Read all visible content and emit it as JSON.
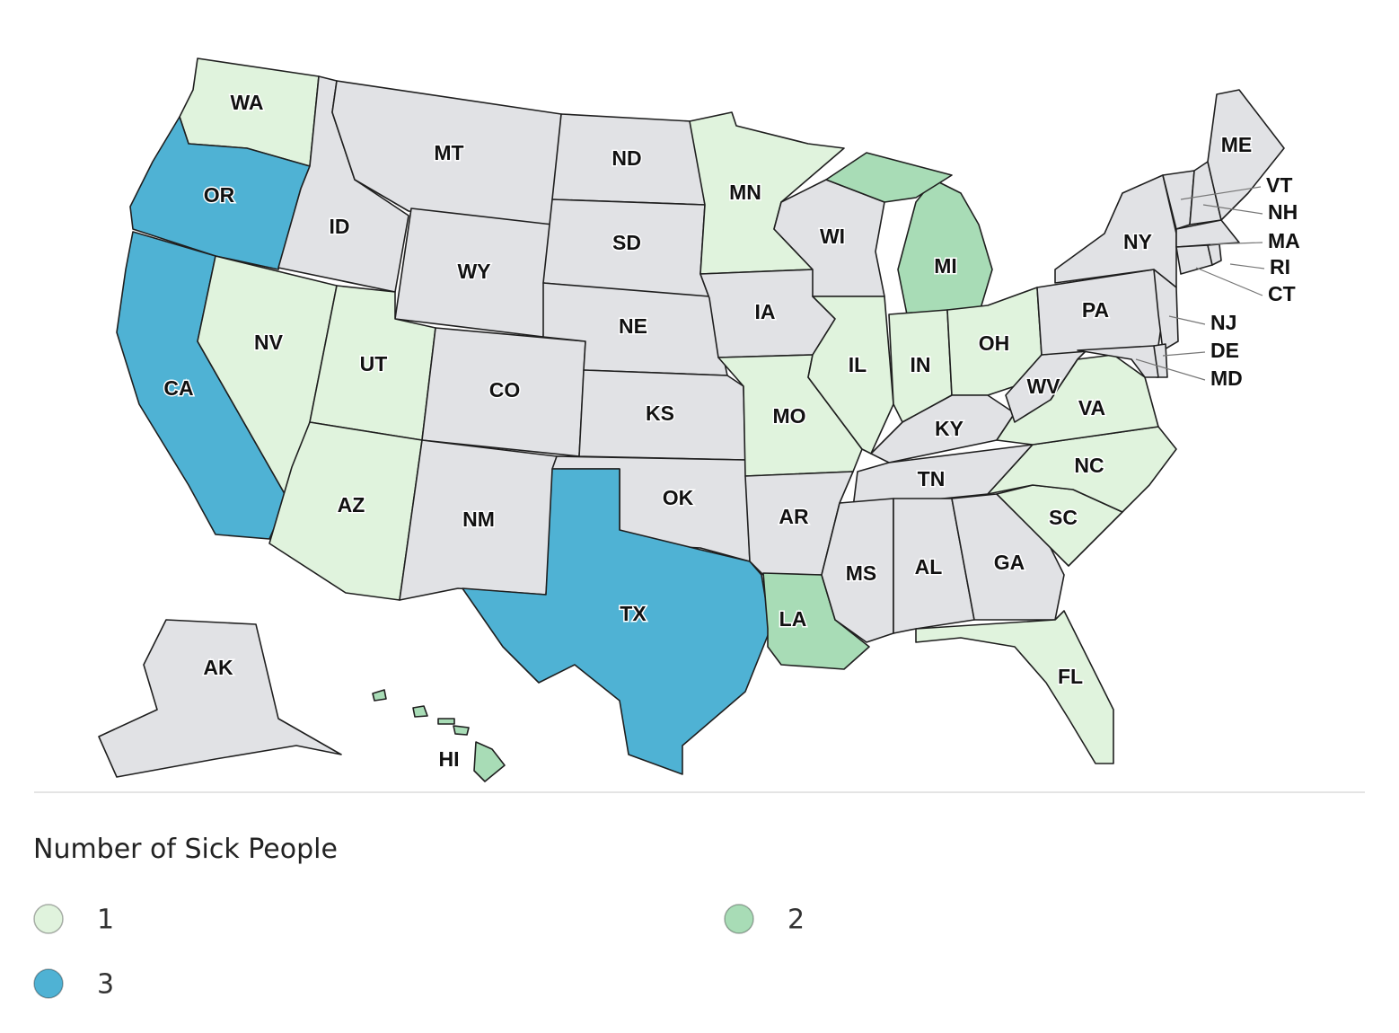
{
  "map": {
    "states": [
      {
        "abbr": "WA",
        "value": 1
      },
      {
        "abbr": "OR",
        "value": 3
      },
      {
        "abbr": "CA",
        "value": 3
      },
      {
        "abbr": "NV",
        "value": 1
      },
      {
        "abbr": "ID",
        "value": null
      },
      {
        "abbr": "MT",
        "value": null
      },
      {
        "abbr": "WY",
        "value": null
      },
      {
        "abbr": "UT",
        "value": 1
      },
      {
        "abbr": "CO",
        "value": null
      },
      {
        "abbr": "AZ",
        "value": 1
      },
      {
        "abbr": "NM",
        "value": null
      },
      {
        "abbr": "ND",
        "value": null
      },
      {
        "abbr": "SD",
        "value": null
      },
      {
        "abbr": "NE",
        "value": null
      },
      {
        "abbr": "KS",
        "value": null
      },
      {
        "abbr": "OK",
        "value": null
      },
      {
        "abbr": "TX",
        "value": 3
      },
      {
        "abbr": "MN",
        "value": 1
      },
      {
        "abbr": "IA",
        "value": null
      },
      {
        "abbr": "MO",
        "value": 1
      },
      {
        "abbr": "AR",
        "value": null
      },
      {
        "abbr": "LA",
        "value": 2
      },
      {
        "abbr": "WI",
        "value": null
      },
      {
        "abbr": "IL",
        "value": 1
      },
      {
        "abbr": "MI",
        "value": 2
      },
      {
        "abbr": "IN",
        "value": 1
      },
      {
        "abbr": "OH",
        "value": 1
      },
      {
        "abbr": "KY",
        "value": null
      },
      {
        "abbr": "TN",
        "value": null
      },
      {
        "abbr": "MS",
        "value": null
      },
      {
        "abbr": "AL",
        "value": null
      },
      {
        "abbr": "GA",
        "value": null
      },
      {
        "abbr": "FL",
        "value": 1
      },
      {
        "abbr": "SC",
        "value": 1
      },
      {
        "abbr": "NC",
        "value": 1
      },
      {
        "abbr": "VA",
        "value": 1
      },
      {
        "abbr": "WV",
        "value": null
      },
      {
        "abbr": "PA",
        "value": null
      },
      {
        "abbr": "NY",
        "value": null
      },
      {
        "abbr": "NJ",
        "value": null
      },
      {
        "abbr": "DE",
        "value": null
      },
      {
        "abbr": "MD",
        "value": null
      },
      {
        "abbr": "VT",
        "value": null
      },
      {
        "abbr": "NH",
        "value": null
      },
      {
        "abbr": "ME",
        "value": null
      },
      {
        "abbr": "MA",
        "value": null
      },
      {
        "abbr": "CT",
        "value": null
      },
      {
        "abbr": "RI",
        "value": null
      },
      {
        "abbr": "AK",
        "value": null
      },
      {
        "abbr": "HI",
        "value": 2
      }
    ],
    "no_data_color": "#e1e2e5",
    "legend": {
      "title": "Number of Sick People",
      "items": [
        {
          "value": 1,
          "color": "#e0f3dd"
        },
        {
          "value": 2,
          "color": "#a8dcb6"
        },
        {
          "value": 3,
          "color": "#4fb2d4"
        }
      ]
    }
  }
}
